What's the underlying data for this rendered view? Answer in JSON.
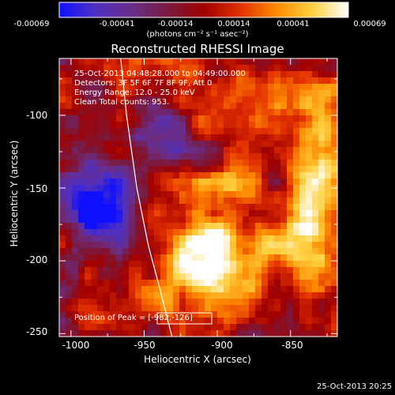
{
  "colorbar": {
    "ticks": [
      "-0.00069",
      "-0.00041",
      "-0.00014",
      "0.00014",
      "0.00041",
      "0.00069"
    ],
    "units": "(photons cm⁻² s⁻¹ asec⁻²)"
  },
  "title": "Reconstructed RHESSI Image",
  "info": {
    "time": "25-Oct-2013 04:48:28.000 to 04:49:00.000",
    "detectors": "Detectors: 3F 5F 6F 7F 8F 9F, Att 0",
    "energy": "Energy Range: 12.0 - 25.0 keV",
    "clean": "Clean     Total counts: 953."
  },
  "peak_label": "Position of Peak = [-982,-126]",
  "axes": {
    "xlabel": "Heliocentric X (arcsec)",
    "ylabel": "Heliocentric Y (arcsec)",
    "xticks": [
      "-1000",
      "-950",
      "-900",
      "-850"
    ],
    "yticks": [
      "-100",
      "-150",
      "-200",
      "-250"
    ]
  },
  "timestamp": "25-Oct-2013 20:25",
  "chart_data": {
    "type": "heatmap",
    "title": "Reconstructed RHESSI Image",
    "xlabel": "Heliocentric X (arcsec)",
    "ylabel": "Heliocentric Y (arcsec)",
    "xlim": [
      -1008,
      -818
    ],
    "ylim": [
      -252,
      -61
    ],
    "zlim": [
      -0.00069,
      0.00069
    ],
    "colormap": [
      "#1010ff",
      "#5030c0",
      "#6a2e8a",
      "#7a1a40",
      "#a00000",
      "#e23000",
      "#ff8a00",
      "#ffd040",
      "#ffffff"
    ],
    "limb_curve": [
      [
        -966,
        -61
      ],
      [
        -962,
        -100
      ],
      [
        -955,
        -150
      ],
      [
        -947,
        -190
      ],
      [
        -939,
        -220
      ],
      [
        -931,
        -252
      ]
    ],
    "peak": [
      -982,
      -126
    ]
  }
}
